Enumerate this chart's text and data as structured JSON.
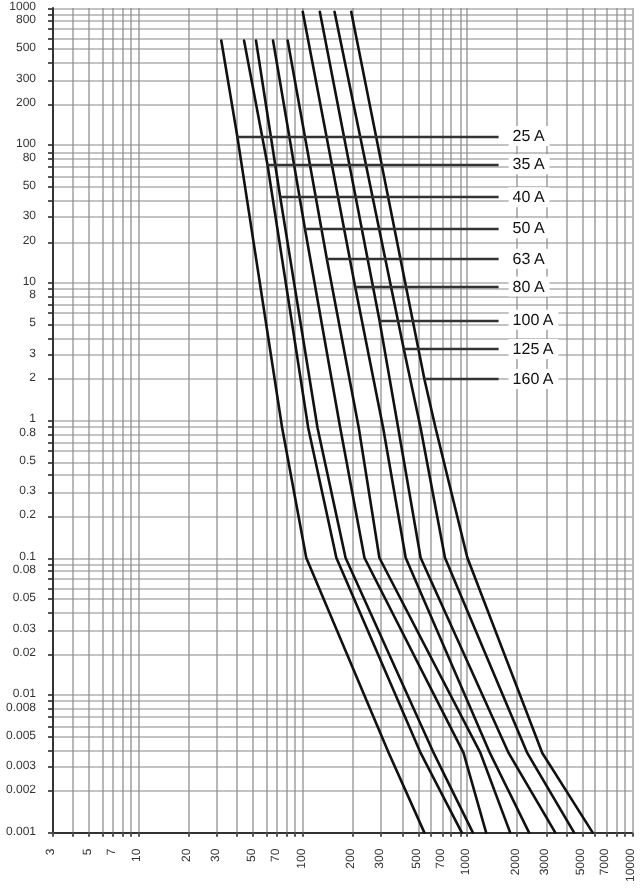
{
  "chart_data": {
    "type": "line",
    "log": "xy",
    "grid": true,
    "marker": "none",
    "line_style": "solid",
    "xlim": [
      3,
      10000
    ],
    "ylim": [
      0.001,
      1000
    ],
    "xticks": [
      3,
      {
        "value": 4,
        "label": null
      },
      5,
      {
        "value": 6,
        "label": null
      },
      7,
      {
        "value": 8,
        "label": null
      },
      {
        "value": 9,
        "label": null
      },
      10,
      20,
      30,
      {
        "value": 40,
        "label": null
      },
      50,
      {
        "value": 60,
        "label": null
      },
      70,
      {
        "value": 80,
        "label": null
      },
      {
        "value": 90,
        "label": null
      },
      100,
      200,
      300,
      {
        "value": 400,
        "label": null
      },
      500,
      {
        "value": 600,
        "label": null
      },
      700,
      {
        "value": 800,
        "label": null
      },
      {
        "value": 900,
        "label": null
      },
      1000,
      2000,
      3000,
      {
        "value": 4000,
        "label": null
      },
      5000,
      {
        "value": 6000,
        "label": null
      },
      7000,
      {
        "value": 8000,
        "label": null
      },
      {
        "value": 9000,
        "label": null
      },
      10000
    ],
    "yticks": [
      0.001,
      0.002,
      0.003,
      {
        "value": 0.004,
        "label": null
      },
      0.005,
      {
        "value": 0.006,
        "label": null
      },
      {
        "value": 0.007,
        "label": null
      },
      0.008,
      {
        "value": 0.009,
        "label": null
      },
      0.01,
      0.02,
      0.03,
      {
        "value": 0.04,
        "label": null
      },
      0.05,
      {
        "value": 0.06,
        "label": null
      },
      {
        "value": 0.07,
        "label": null
      },
      0.08,
      {
        "value": 0.09,
        "label": null
      },
      0.1,
      0.2,
      0.3,
      {
        "value": 0.4,
        "label": null
      },
      0.5,
      {
        "value": 0.6,
        "label": null
      },
      {
        "value": 0.7,
        "label": null
      },
      0.8,
      {
        "value": 0.9,
        "label": null
      },
      1,
      2,
      3,
      {
        "value": 4,
        "label": null
      },
      5,
      {
        "value": 6,
        "label": null
      },
      {
        "value": 7,
        "label": null
      },
      8,
      {
        "value": 9,
        "label": null
      },
      10,
      20,
      30,
      {
        "value": 40,
        "label": null
      },
      50,
      {
        "value": 60,
        "label": null
      },
      {
        "value": 70,
        "label": null
      },
      80,
      {
        "value": 90,
        "label": null
      },
      100,
      200,
      300,
      {
        "value": 400,
        "label": null
      },
      500,
      {
        "value": 600,
        "label": null
      },
      {
        "value": 700,
        "label": null
      },
      800,
      {
        "value": 900,
        "label": null
      },
      1000
    ],
    "series": [
      {
        "color": "#111111",
        "x": [
          32,
          40,
          75,
          105,
          333,
          548
        ],
        "values": [
          580,
          117,
          0.88,
          0.1,
          0.0038,
          0.001
        ]
      },
      {
        "color": "#111111",
        "x": [
          44,
          61,
          108,
          160,
          520,
          925
        ],
        "values": [
          580,
          73,
          0.88,
          0.1,
          0.0038,
          0.001
        ]
      },
      {
        "color": "#111111",
        "x": [
          52,
          73,
          123,
          182,
          624,
          1080
        ],
        "values": [
          580,
          42,
          0.88,
          0.1,
          0.0038,
          0.001
        ]
      },
      {
        "color": "#111111",
        "x": [
          66,
          103,
          169,
          237,
          948,
          1300
        ],
        "values": [
          580,
          25,
          0.88,
          0.1,
          0.0038,
          0.001
        ]
      },
      {
        "color": "#111111",
        "x": [
          81,
          140,
          219,
          292,
          1200,
          1820
        ],
        "values": [
          580,
          15,
          0.88,
          0.1,
          0.0038,
          0.001
        ]
      },
      {
        "color": "#111111",
        "x": [
          100,
          208,
          308,
          422,
          1370,
          2370
        ],
        "values": [
          940,
          9.4,
          0.88,
          0.1,
          0.0038,
          0.001
        ]
      },
      {
        "color": "#111111",
        "x": [
          127,
          292,
          380,
          520,
          1780,
          3420
        ],
        "values": [
          940,
          5.4,
          0.88,
          0.1,
          0.0038,
          0.001
        ]
      },
      {
        "color": "#111111",
        "x": [
          156,
          411,
          520,
          731,
          2310,
          4450
        ],
        "values": [
          940,
          3.3,
          0.88,
          0.1,
          0.0038,
          0.001
        ]
      },
      {
        "color": "#111111",
        "x": [
          197,
          548,
          641,
          1000,
          2850,
          5770
        ],
        "values": [
          940,
          2,
          0.88,
          0.1,
          0.0038,
          0.001
        ]
      }
    ],
    "annotations": [
      {
        "text": "25 A",
        "x": 40,
        "y": 117
      },
      {
        "text": "35 A",
        "x": 61,
        "y": 73
      },
      {
        "text": "40 A",
        "x": 73,
        "y": 42
      },
      {
        "text": "50 A",
        "x": 103,
        "y": 25
      },
      {
        "text": "63 A",
        "x": 140,
        "y": 15
      },
      {
        "text": "80 A",
        "x": 208,
        "y": 9.4
      },
      {
        "text": "100 A",
        "x": 292,
        "y": 5.4
      },
      {
        "text": "125 A",
        "x": 411,
        "y": 3.3
      },
      {
        "text": "160 A",
        "x": 548,
        "y": 2
      }
    ]
  }
}
